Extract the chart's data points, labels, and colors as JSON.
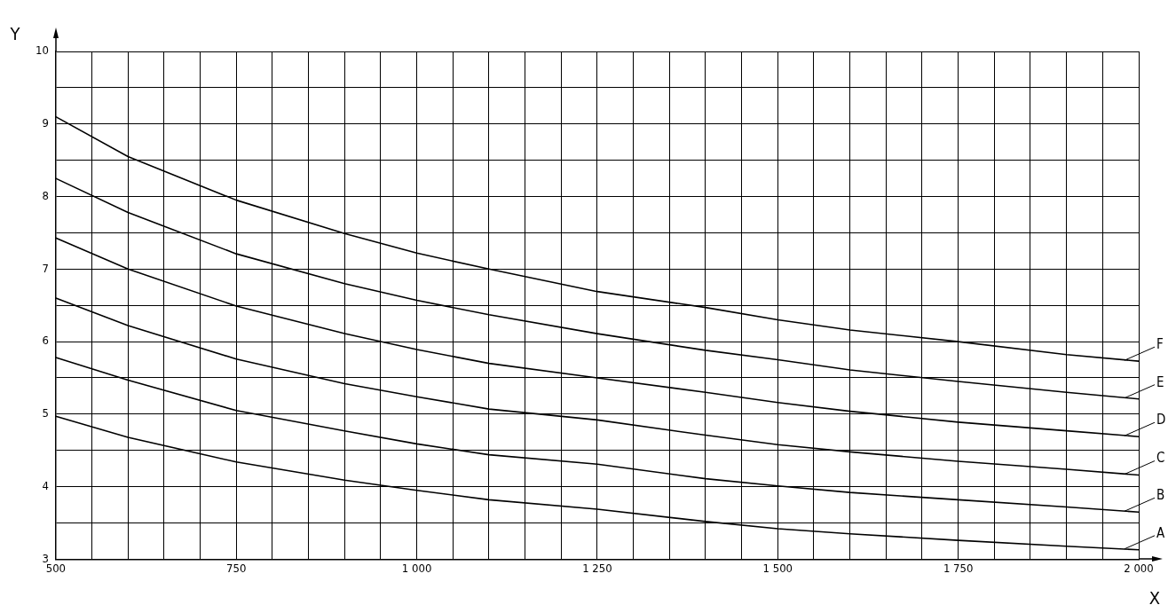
{
  "chart_data": {
    "type": "line",
    "xlabel": "X",
    "ylabel": "Y",
    "x": [
      500,
      600,
      750,
      900,
      1000,
      1100,
      1250,
      1400,
      1500,
      1600,
      1750,
      1900,
      2000
    ],
    "series": [
      {
        "name": "A",
        "color": "#000000",
        "values": [
          4.97,
          4.68,
          4.34,
          4.09,
          3.95,
          3.82,
          3.69,
          3.52,
          3.42,
          3.35,
          3.26,
          3.18,
          3.13
        ]
      },
      {
        "name": "B",
        "color": "#000000",
        "values": [
          5.78,
          5.47,
          5.05,
          4.77,
          4.59,
          4.44,
          4.31,
          4.11,
          4.01,
          3.92,
          3.82,
          3.72,
          3.65
        ]
      },
      {
        "name": "C",
        "color": "#000000",
        "values": [
          6.6,
          6.22,
          5.76,
          5.42,
          5.24,
          5.07,
          4.92,
          4.71,
          4.58,
          4.48,
          4.35,
          4.24,
          4.16
        ]
      },
      {
        "name": "D",
        "color": "#000000",
        "values": [
          7.43,
          7.0,
          6.49,
          6.11,
          5.89,
          5.7,
          5.5,
          5.3,
          5.16,
          5.04,
          4.89,
          4.77,
          4.69
        ]
      },
      {
        "name": "E",
        "color": "#000000",
        "values": [
          8.25,
          7.78,
          7.21,
          6.8,
          6.57,
          6.37,
          6.11,
          5.88,
          5.75,
          5.61,
          5.45,
          5.3,
          5.21
        ]
      },
      {
        "name": "F",
        "color": "#000000",
        "values": [
          9.1,
          8.55,
          7.95,
          7.49,
          7.22,
          7.0,
          6.69,
          6.47,
          6.3,
          6.16,
          6.0,
          5.82,
          5.73
        ]
      }
    ],
    "xlim": [
      500,
      2000
    ],
    "xticks": [
      500,
      {
        "value": 550,
        "label": null
      },
      {
        "value": 600,
        "label": null
      },
      {
        "value": 650,
        "label": null
      },
      {
        "value": 700,
        "label": null
      },
      750,
      {
        "value": 800,
        "label": null
      },
      {
        "value": 850,
        "label": null
      },
      {
        "value": 900,
        "label": null
      },
      {
        "value": 950,
        "label": null
      },
      {
        "value": 1000,
        "label": "1 000"
      },
      {
        "value": 1050,
        "label": null
      },
      {
        "value": 1100,
        "label": null
      },
      {
        "value": 1150,
        "label": null
      },
      {
        "value": 1200,
        "label": null
      },
      {
        "value": 1250,
        "label": "1 250"
      },
      {
        "value": 1300,
        "label": null
      },
      {
        "value": 1350,
        "label": null
      },
      {
        "value": 1400,
        "label": null
      },
      {
        "value": 1450,
        "label": null
      },
      {
        "value": 1500,
        "label": "1 500"
      },
      {
        "value": 1550,
        "label": null
      },
      {
        "value": 1600,
        "label": null
      },
      {
        "value": 1650,
        "label": null
      },
      {
        "value": 1700,
        "label": null
      },
      {
        "value": 1750,
        "label": "1 750"
      },
      {
        "value": 1800,
        "label": null
      },
      {
        "value": 1850,
        "label": null
      },
      {
        "value": 1900,
        "label": null
      },
      {
        "value": 1950,
        "label": null
      },
      {
        "value": 2000,
        "label": "2 000"
      }
    ],
    "ylim": [
      3,
      10
    ],
    "yticks": [
      3,
      {
        "value": 3.5,
        "label": null
      },
      4,
      {
        "value": 4.5,
        "label": null
      },
      5,
      {
        "value": 5.5,
        "label": null
      },
      6,
      {
        "value": 6.5,
        "label": null
      },
      7,
      {
        "value": 7.5,
        "label": null
      },
      8,
      {
        "value": 8.5,
        "label": null
      },
      9,
      {
        "value": 9.5,
        "label": null
      },
      10
    ],
    "grid": true,
    "legend": false
  }
}
